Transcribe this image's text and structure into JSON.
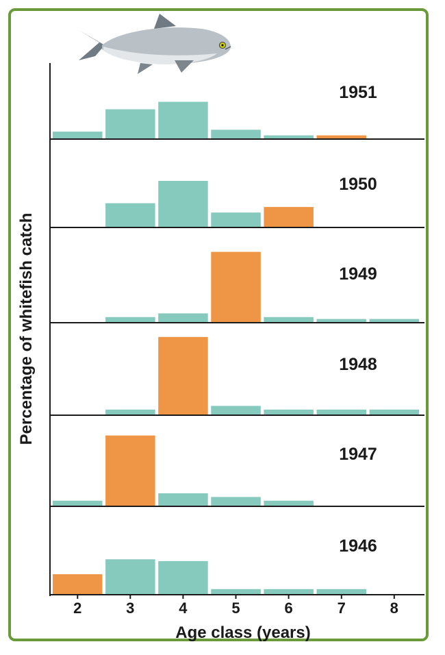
{
  "chart_data": {
    "type": "bar",
    "ylabel": "Percentage of whitefish catch",
    "xlabel": "Age class (years)",
    "categories": [
      "2",
      "3",
      "4",
      "5",
      "6",
      "7",
      "8"
    ],
    "colors": {
      "normal": "#86c9bd",
      "highlight": "#ef9646",
      "axis": "#1a1a1a",
      "frame": "#6a9a3a"
    },
    "panels": [
      {
        "year": "1951",
        "values": [
          4,
          16,
          20,
          5,
          2,
          2,
          0
        ],
        "highlight": "7"
      },
      {
        "year": "1950",
        "values": [
          0,
          13,
          25,
          8,
          11,
          0,
          0
        ],
        "highlight": "6"
      },
      {
        "year": "1949",
        "values": [
          0,
          3,
          5,
          38,
          3,
          2,
          2
        ],
        "highlight": "5"
      },
      {
        "year": "1948",
        "values": [
          0,
          3,
          42,
          5,
          3,
          3,
          3
        ],
        "highlight": "4"
      },
      {
        "year": "1947",
        "values": [
          3,
          38,
          7,
          5,
          3,
          0,
          0
        ],
        "highlight": "3"
      },
      {
        "year": "1946",
        "values": [
          11,
          19,
          18,
          3,
          3,
          3,
          0
        ],
        "highlight": "2"
      }
    ],
    "legend": "none",
    "grid": false
  },
  "illustration": {
    "icon": "whitefish-icon"
  }
}
